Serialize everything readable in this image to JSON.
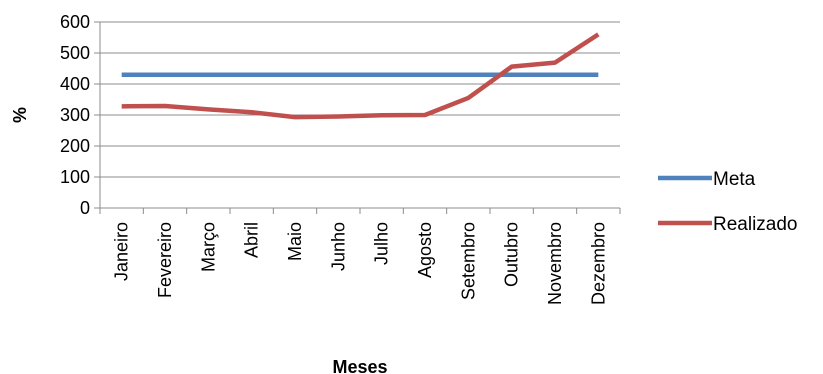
{
  "chart_data": {
    "type": "line",
    "xlabel": "Meses",
    "ylabel": "%",
    "categories": [
      "Janeiro",
      "Fevereiro",
      "Março",
      "Abril",
      "Maio",
      "Junho",
      "Julho",
      "Agosto",
      "Setembro",
      "Outubro",
      "Novembro",
      "Dezembro"
    ],
    "ylim": [
      0,
      600
    ],
    "yticks": [
      "0",
      "100",
      "200",
      "300",
      "400",
      "500",
      "600"
    ],
    "grid": true,
    "legend_position": "right",
    "series": [
      {
        "name": "Meta",
        "color": "#4f81bd",
        "values": [
          430,
          430,
          430,
          430,
          430,
          430,
          430,
          430,
          430,
          430,
          430,
          430
        ]
      },
      {
        "name": "Realizado",
        "color": "#c0504d",
        "values": [
          328,
          329,
          318,
          309,
          293,
          295,
          299,
          300,
          355,
          456,
          469,
          560
        ]
      }
    ]
  }
}
